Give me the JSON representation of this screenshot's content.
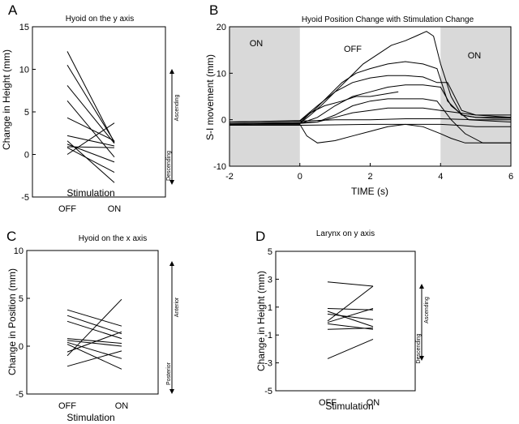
{
  "colors": {
    "line": "#000000",
    "shade": "#d9d9d9",
    "background": "#ffffff"
  },
  "chart_data": [
    {
      "id": "A",
      "type": "line",
      "panel_label": "A",
      "title": "Hyoid on the y axis",
      "xlabel": "Stimulation",
      "ylabel": "Change in Height (mm)",
      "categories": [
        "OFF",
        "ON"
      ],
      "ylim": [
        -5,
        15
      ],
      "yticks": [
        -5,
        0,
        5,
        10,
        15
      ],
      "side_arrow": {
        "upper": "Ascending",
        "lower": "Descending"
      },
      "series": [
        {
          "name": "s1",
          "values": [
            12.1,
            1.4
          ]
        },
        {
          "name": "s2",
          "values": [
            10.5,
            1.5
          ]
        },
        {
          "name": "s3",
          "values": [
            8.1,
            1.3
          ]
        },
        {
          "name": "s4",
          "values": [
            6.3,
            -0.3
          ]
        },
        {
          "name": "s5",
          "values": [
            4.3,
            1.6
          ]
        },
        {
          "name": "s6",
          "values": [
            2.2,
            1.0
          ]
        },
        {
          "name": "s7",
          "values": [
            1.2,
            -0.9
          ]
        },
        {
          "name": "s8",
          "values": [
            0.9,
            0.8
          ]
        },
        {
          "name": "s9",
          "values": [
            0.8,
            -2.1
          ]
        },
        {
          "name": "s10",
          "values": [
            0.0,
            3.7
          ]
        },
        {
          "name": "s11",
          "values": [
            1.6,
            -3.3
          ]
        }
      ]
    },
    {
      "id": "B",
      "type": "line",
      "panel_label": "B",
      "title": "Hyoid Position Change with Stimulation Change",
      "xlabel": "TIME (s)",
      "ylabel": "S-I movement (mm)",
      "xlim": [
        -2,
        6
      ],
      "ylim": [
        -10,
        20
      ],
      "xticks": [
        -2,
        0,
        2,
        4,
        6
      ],
      "yticks": [
        -10,
        0,
        10,
        20
      ],
      "regions": [
        {
          "label": "ON",
          "x0": -2,
          "x1": 0,
          "shaded": true
        },
        {
          "label": "OFF",
          "x0": 0,
          "x1": 4,
          "shaded": false
        },
        {
          "label": "ON",
          "x0": 4,
          "x1": 6,
          "shaded": true
        }
      ],
      "series": [
        {
          "name": "t1",
          "x": [
            -2,
            0,
            0.3,
            0.6,
            1,
            1.4,
            1.8,
            2.2,
            2.6,
            3,
            3.3,
            3.6,
            3.8,
            4.0,
            4.3,
            4.6,
            5,
            5.5,
            6
          ],
          "y": [
            -1,
            -0.8,
            1,
            3,
            6,
            9,
            12,
            14,
            16,
            17,
            18,
            19,
            18,
            12,
            5,
            1,
            0.5,
            0.3,
            0.3
          ]
        },
        {
          "name": "t2",
          "x": [
            -2,
            0,
            0.4,
            0.8,
            1.2,
            1.6,
            2,
            2.5,
            3,
            3.5,
            3.9,
            4.2,
            4.6,
            5,
            6
          ],
          "y": [
            -0.5,
            -0.3,
            2,
            5,
            8,
            10,
            11,
            12,
            12.5,
            12,
            11,
            4,
            1,
            0.5,
            0.5
          ]
        },
        {
          "name": "t3",
          "x": [
            -2,
            0,
            0.5,
            1,
            1.5,
            2,
            2.5,
            3,
            3.5,
            3.9,
            4.2,
            4.6,
            5,
            6
          ],
          "y": [
            -0.5,
            -0.2,
            3,
            6,
            8,
            9,
            9.5,
            9.5,
            9.2,
            8,
            8,
            2,
            1,
            1
          ]
        },
        {
          "name": "t4",
          "x": [
            -2,
            0,
            0.5,
            1,
            1.5,
            2,
            2.5,
            3,
            3.5,
            4,
            4.3,
            4.8,
            5.5,
            6
          ],
          "y": [
            -1,
            -0.8,
            0.5,
            3,
            5,
            6,
            7,
            7.5,
            7.5,
            7,
            3,
            0,
            -0.3,
            -0.5
          ]
        },
        {
          "name": "t5",
          "x": [
            -2,
            0,
            0.5,
            1,
            1.5,
            2,
            2.5,
            3,
            3.5,
            3.9,
            4.3,
            4.7,
            5.2,
            6
          ],
          "y": [
            -1,
            -0.8,
            -0.5,
            1,
            3,
            4,
            4.5,
            4.5,
            4.5,
            4,
            0,
            -3,
            -5,
            -5
          ]
        },
        {
          "name": "t6",
          "x": [
            -2,
            0,
            0.5,
            1,
            1.5,
            2,
            2.5,
            3,
            3.5,
            4,
            5,
            6
          ],
          "y": [
            -0.8,
            -0.6,
            -0.5,
            0.5,
            1.5,
            2,
            2.5,
            2.5,
            2.5,
            2,
            1,
            0.5
          ]
        },
        {
          "name": "t7",
          "x": [
            -2,
            0,
            1,
            2,
            3,
            4,
            5,
            6
          ],
          "y": [
            -0.5,
            -0.3,
            0,
            0,
            0.2,
            0.2,
            0,
            0
          ]
        },
        {
          "name": "t8",
          "x": [
            -2,
            0,
            0.3,
            0.7,
            1.2,
            1.6,
            2,
            2.4,
            2.8
          ],
          "y": [
            -1,
            -0.7,
            1.5,
            3,
            4,
            5,
            5,
            5.5,
            6
          ]
        },
        {
          "name": "t9",
          "x": [
            -2,
            0,
            0.2,
            0.5,
            1,
            1.5,
            2,
            2.5,
            3,
            3.5,
            4,
            4.3,
            4.7,
            5,
            6
          ],
          "y": [
            -1,
            -1,
            -3.5,
            -5,
            -4.5,
            -3.5,
            -2.5,
            -1.5,
            -1,
            -1.5,
            -3,
            -4,
            -5,
            -5,
            -5
          ]
        },
        {
          "name": "t10",
          "x": [
            -2,
            0,
            1,
            2,
            3,
            4,
            4.5,
            5,
            6
          ],
          "y": [
            -1.2,
            -1.2,
            -1.1,
            -1.0,
            -1.0,
            -1.0,
            -1.2,
            -1.5,
            -1.5
          ]
        }
      ]
    },
    {
      "id": "C",
      "type": "line",
      "panel_label": "C",
      "title": "Hyoid on the x axis",
      "xlabel": "Stimulation",
      "ylabel": "Change in Position (mm)",
      "categories": [
        "OFF",
        "ON"
      ],
      "ylim": [
        -5,
        10
      ],
      "yticks": [
        -5,
        0,
        5,
        10
      ],
      "side_arrow": {
        "upper": "Anterior",
        "lower": "Posterior"
      },
      "series": [
        {
          "name": "s1",
          "values": [
            3.8,
            2.1
          ]
        },
        {
          "name": "s2",
          "values": [
            3.2,
            1.3
          ]
        },
        {
          "name": "s3",
          "values": [
            2.6,
            0.8
          ]
        },
        {
          "name": "s4",
          "values": [
            0.8,
            0.3
          ]
        },
        {
          "name": "s5",
          "values": [
            0.6,
            0.0
          ]
        },
        {
          "name": "s6",
          "values": [
            0.4,
            -1.3
          ]
        },
        {
          "name": "s7",
          "values": [
            0.2,
            -2.4
          ]
        },
        {
          "name": "s8",
          "values": [
            -0.6,
            1.5
          ]
        },
        {
          "name": "s9",
          "values": [
            -1.0,
            4.9
          ]
        },
        {
          "name": "s10",
          "values": [
            -2.1,
            -0.5
          ]
        }
      ]
    },
    {
      "id": "D",
      "type": "line",
      "panel_label": "D",
      "title": "Larynx on y axis",
      "xlabel": "Stimulation",
      "ylabel": "Change in Height (mm)",
      "categories": [
        "OFF",
        "ON"
      ],
      "ylim": [
        -5,
        5
      ],
      "yticks": [
        -5,
        -3,
        -1,
        1,
        3,
        5
      ],
      "side_arrow": {
        "upper": "Ascending",
        "lower": "Descending"
      },
      "series": [
        {
          "name": "s1",
          "values": [
            2.8,
            2.5
          ]
        },
        {
          "name": "s2",
          "values": [
            0.9,
            0.8
          ]
        },
        {
          "name": "s3",
          "values": [
            0.7,
            -0.4
          ]
        },
        {
          "name": "s4",
          "values": [
            0.5,
            0.1
          ]
        },
        {
          "name": "s5",
          "values": [
            0.0,
            2.5
          ]
        },
        {
          "name": "s6",
          "values": [
            -0.1,
            0.9
          ]
        },
        {
          "name": "s7",
          "values": [
            -0.2,
            -0.6
          ]
        },
        {
          "name": "s8",
          "values": [
            -0.6,
            -0.5
          ]
        },
        {
          "name": "s9",
          "values": [
            -2.7,
            -1.3
          ]
        }
      ]
    }
  ]
}
